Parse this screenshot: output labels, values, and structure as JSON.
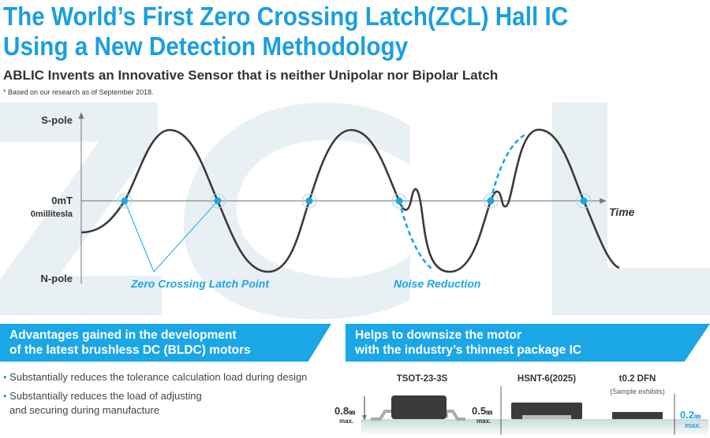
{
  "title_lines": [
    "The World’s First Zero Crossing Latch(ZCL) Hall IC",
    "Using a New Detection Methodology"
  ],
  "subtitle": "ABLIC Invents an Innovative Sensor that is neither Unipolar nor Bipolar Latch",
  "footnote": "* Based on our research as of September 2018.",
  "watermark": "ZCL",
  "diagram": {
    "y_top": "S-pole",
    "y_mid": "0mT",
    "y_mid2": "0millitesla",
    "y_bottom": "N-pole",
    "x_label": "Time",
    "label_zcl": "Zero Crossing Latch Point",
    "label_noise": "Noise Reduction"
  },
  "advantages": {
    "heading": [
      "Advantages gained in the development",
      "of the latest brushless DC (BLDC) motors"
    ],
    "items": [
      "Substantially reduces the tolerance calculation load during design",
      "Substantially reduces the load of adjusting",
      "and securing during manufacture"
    ]
  },
  "packages": {
    "heading": [
      "Helps to downsize the motor",
      "with the industry’s thinnest package IC"
    ],
    "items": [
      {
        "name": "TSOT-23-3S",
        "thickness": "0.8",
        "unit": "㎜",
        "max": "max."
      },
      {
        "name": "HSNT-6(2025)",
        "thickness": "0.5",
        "unit": "㎜",
        "max": "max."
      },
      {
        "name": "t0.2 DFN",
        "note": "(Sample exhibits)",
        "thickness": "0.2",
        "unit": "㎜",
        "max": "max."
      }
    ]
  },
  "colors": {
    "accent": "#1ba6e6",
    "curve": "#3a3a3a",
    "watermark": "#e9f0f4"
  }
}
